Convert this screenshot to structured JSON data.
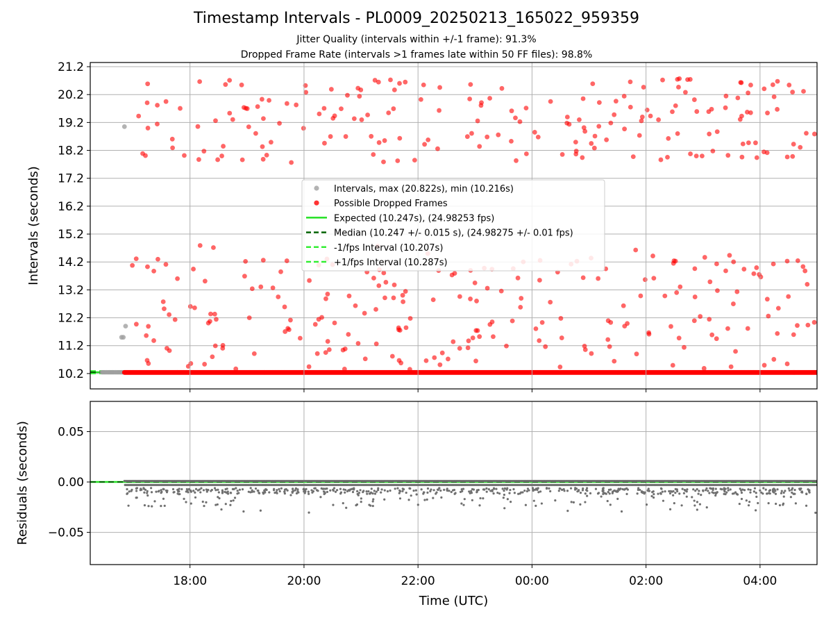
{
  "figure": {
    "title": "Timestamp Intervals - PL0009_20250213_165022_959359",
    "subtitle_jitter": "Jitter Quality (intervals within +/-1 frame): 91.3%",
    "subtitle_dropped": "Dropped Frame Rate (intervals >1 frames late within 50 FF files): 98.8%"
  },
  "colors": {
    "intervals": "#a0a0a0",
    "dropped": "#ff0000",
    "expected": "#22e022",
    "median": "#006400",
    "fps_bounds": "#33ee33",
    "residuals": "#707070",
    "grid": "#b0b0b0"
  },
  "chart_data": [
    {
      "type": "scatter",
      "ylabel": "Intervals (seconds)",
      "ylim": [
        9.65,
        21.35
      ],
      "yticks": [
        10.2,
        11.2,
        12.2,
        13.2,
        14.2,
        15.2,
        16.2,
        17.2,
        18.2,
        19.2,
        20.2,
        21.2
      ],
      "ytick_labels": [
        "10.2",
        "11.2",
        "12.2",
        "13.2",
        "14.2",
        "15.2",
        "16.2",
        "17.2",
        "18.2",
        "19.2",
        "20.2",
        "21.2"
      ],
      "xlim_hours": [
        16.25,
        29.0
      ],
      "grid": true,
      "legend_position": "center",
      "legend": [
        {
          "label": "Intervals, max (20.822s), min (10.216s)",
          "kind": "dot",
          "color": "#a0a0a0"
        },
        {
          "label": "Possible Dropped Frames",
          "kind": "dot",
          "color": "#ff0000"
        },
        {
          "label": "Expected (10.247s), (24.98253 fps)",
          "kind": "solid",
          "color": "#22e022"
        },
        {
          "label": "Median (10.247 +/- 0.015 s), (24.98275 +/- 0.01 fps)",
          "kind": "dashed",
          "color": "#006400"
        },
        {
          "label": "-1/fps Interval (10.207s)",
          "kind": "dashed",
          "color": "#33ee33"
        },
        {
          "label": "+1/fps Interval (10.287s)",
          "kind": "dashed",
          "color": "#33ee33"
        }
      ],
      "series": [
        {
          "name": "Intervals, max (20.822s), min (10.216s)",
          "baseline_y": 10.247,
          "x_range": [
            16.25,
            16.85
          ],
          "points": [
            [
              16.85,
              19.05
            ],
            [
              16.87,
              11.9
            ],
            [
              16.8,
              11.5
            ],
            [
              16.83,
              11.5
            ]
          ]
        },
        {
          "name": "Possible Dropped Frames",
          "baseline_y": 10.24,
          "x_range": [
            16.85,
            29.0
          ],
          "points": []
        },
        {
          "name": "Expected (10.247s), (24.98253 fps)",
          "y": 10.247
        },
        {
          "name": "Median (10.247 +/- 0.015 s), (24.98275 +/- 0.01 fps)",
          "y": 10.247
        },
        {
          "name": "-1/fps Interval (10.207s)",
          "y": 10.207
        },
        {
          "name": "+1/fps Interval (10.287s)",
          "y": 10.287
        }
      ]
    },
    {
      "type": "scatter",
      "ylabel": "Residuals (seconds)",
      "xlabel": "Time (UTC)",
      "ylim": [
        -0.082,
        0.08
      ],
      "yticks": [
        0.05,
        0.0,
        -0.05
      ],
      "ytick_labels": [
        "0.05",
        "0.00",
        "−0.05"
      ],
      "xlim_hours": [
        16.25,
        29.0
      ],
      "xticks_hours": [
        18,
        20,
        22,
        24,
        26,
        28
      ],
      "xtick_labels": [
        "18:00",
        "20:00",
        "22:00",
        "00:00",
        "02:00",
        "04:00"
      ],
      "grid": true,
      "series": [
        {
          "name": "residuals",
          "baseline_y": 0.0,
          "x_range": [
            16.85,
            29.0
          ],
          "points": []
        }
      ]
    }
  ]
}
